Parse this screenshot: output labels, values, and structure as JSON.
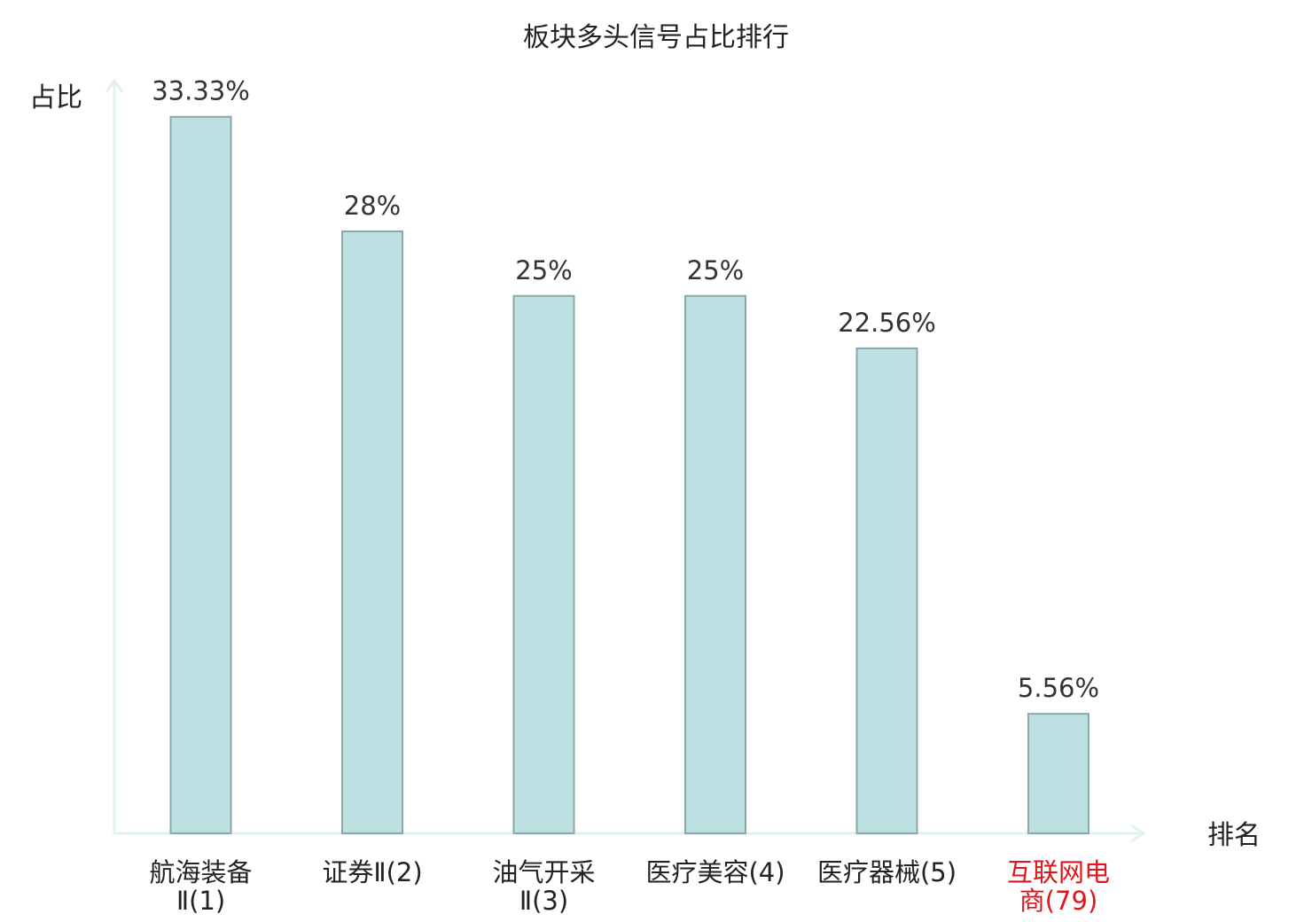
{
  "chart_data": {
    "type": "bar",
    "title": "板块多头信号占比排行",
    "ylabel": "占比",
    "xlabel": "排名",
    "ylim": [
      0,
      34
    ],
    "grid": false,
    "categories": [
      [
        "航海装备",
        "Ⅱ(1)"
      ],
      [
        "证券Ⅱ(2)"
      ],
      [
        "油气开采",
        "Ⅱ(3)"
      ],
      [
        "医疗美容(4)"
      ],
      [
        "医疗器械(5)"
      ],
      [
        "互联网电",
        "商(79)"
      ]
    ],
    "values": [
      33.33,
      28,
      25,
      25,
      22.56,
      5.56
    ],
    "value_labels": [
      "33.33%",
      "28%",
      "25%",
      "25%",
      "22.56%",
      "5.56%"
    ],
    "highlight_index": 5,
    "colors": {
      "bar_fill": "#bde0e2",
      "bar_stroke": "#8aa7aa",
      "axis": "#dff2ef",
      "highlight_text": "#e0151c"
    }
  }
}
